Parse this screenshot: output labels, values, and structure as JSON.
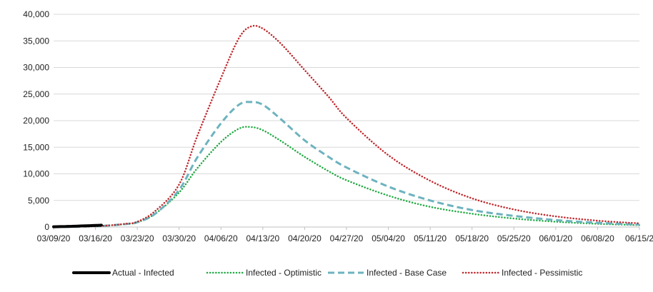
{
  "chart_data": {
    "type": "line",
    "title": "",
    "xlabel": "",
    "ylabel": "",
    "ylim": [
      0,
      40000
    ],
    "yticks": [
      0,
      5000,
      10000,
      15000,
      20000,
      25000,
      30000,
      35000,
      40000
    ],
    "ytick_labels": [
      "0",
      "5,000",
      "10,000",
      "15,000",
      "20,000",
      "25,000",
      "30,000",
      "35,000",
      "40,000"
    ],
    "xlim": [
      "2020-03-09",
      "2020-06-15"
    ],
    "xticks": [
      "2020-03-09",
      "2020-03-16",
      "2020-03-23",
      "2020-03-30",
      "2020-04-06",
      "2020-04-13",
      "2020-04-20",
      "2020-04-27",
      "2020-05-04",
      "2020-05-11",
      "2020-05-18",
      "2020-05-25",
      "2020-06-01",
      "2020-06-08",
      "2020-06-15"
    ],
    "xtick_labels": [
      "03/09/20",
      "03/16/20",
      "03/23/20",
      "03/30/20",
      "04/06/20",
      "04/13/20",
      "04/20/20",
      "04/27/20",
      "05/04/20",
      "05/11/20",
      "05/18/20",
      "05/25/20",
      "06/01/20",
      "06/08/20",
      "06/15/2"
    ],
    "grid": "horizontal",
    "legend_position": "bottom",
    "series": [
      {
        "name": "Actual - Infected",
        "color": "#000000",
        "style": "solid",
        "x": [
          "2020-03-09",
          "2020-03-10",
          "2020-03-11",
          "2020-03-12",
          "2020-03-13",
          "2020-03-14",
          "2020-03-15",
          "2020-03-16",
          "2020-03-17"
        ],
        "y": [
          50,
          80,
          100,
          140,
          170,
          210,
          260,
          300,
          350
        ]
      },
      {
        "name": "Infected - Optimistic",
        "color": "#22aa44",
        "style": "dotted",
        "x": [
          "2020-03-09",
          "2020-03-13",
          "2020-03-17",
          "2020-03-21",
          "2020-03-23",
          "2020-03-26",
          "2020-03-30",
          "2020-04-02",
          "2020-04-06",
          "2020-04-09",
          "2020-04-11",
          "2020-04-13",
          "2020-04-16",
          "2020-04-20",
          "2020-04-24",
          "2020-04-27",
          "2020-05-04",
          "2020-05-11",
          "2020-05-18",
          "2020-05-25",
          "2020-06-01",
          "2020-06-08",
          "2020-06-15"
        ],
        "y": [
          20,
          60,
          200,
          550,
          900,
          2500,
          6500,
          11000,
          16000,
          18500,
          18800,
          18200,
          16200,
          13200,
          10500,
          8800,
          5900,
          3800,
          2500,
          1600,
          1000,
          600,
          350
        ]
      },
      {
        "name": "Infected - Base Case",
        "color": "#6db3bf",
        "style": "dashed",
        "x": [
          "2020-03-09",
          "2020-03-13",
          "2020-03-17",
          "2020-03-21",
          "2020-03-23",
          "2020-03-26",
          "2020-03-30",
          "2020-04-02",
          "2020-04-06",
          "2020-04-09",
          "2020-04-11",
          "2020-04-13",
          "2020-04-16",
          "2020-04-20",
          "2020-04-24",
          "2020-04-27",
          "2020-05-04",
          "2020-05-11",
          "2020-05-18",
          "2020-05-25",
          "2020-06-01",
          "2020-06-08",
          "2020-06-15"
        ],
        "y": [
          20,
          60,
          200,
          550,
          900,
          2500,
          7000,
          13000,
          19500,
          23000,
          23500,
          23000,
          20300,
          16300,
          13200,
          11200,
          7600,
          5000,
          3200,
          2100,
          1300,
          800,
          450
        ]
      },
      {
        "name": "Infected - Pessimistic",
        "color": "#c0282d",
        "style": "dotted",
        "x": [
          "2020-03-09",
          "2020-03-13",
          "2020-03-17",
          "2020-03-21",
          "2020-03-23",
          "2020-03-26",
          "2020-03-30",
          "2020-04-02",
          "2020-04-06",
          "2020-04-09",
          "2020-04-11",
          "2020-04-13",
          "2020-04-16",
          "2020-04-20",
          "2020-04-24",
          "2020-04-27",
          "2020-05-04",
          "2020-05-11",
          "2020-05-18",
          "2020-05-25",
          "2020-06-01",
          "2020-06-08",
          "2020-06-15"
        ],
        "y": [
          20,
          60,
          200,
          600,
          1000,
          3000,
          8000,
          17000,
          28000,
          35500,
          37700,
          37300,
          34500,
          29500,
          24500,
          20500,
          13500,
          8700,
          5400,
          3300,
          2000,
          1200,
          700
        ]
      }
    ]
  }
}
